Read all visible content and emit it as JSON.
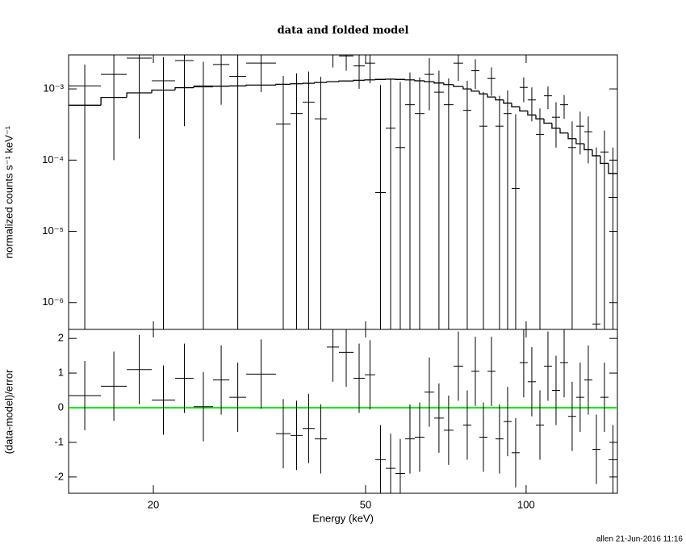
{
  "chart_data": {
    "type": "spectrum",
    "title": "data and folded model",
    "xlabel": "Energy (keV)",
    "footer": "allen 21-Jun-2016 11:16",
    "xscale": "log",
    "xlim": [
      13.87,
      148.3
    ],
    "xticks": [
      20,
      50,
      100
    ],
    "bins": [
      13.87,
      15.95,
      17.83,
      19.86,
      21.97,
      23.8,
      25.88,
      27.76,
      29.86,
      33.96,
      36.16,
      38.1,
      40.14,
      42.3,
      44.57,
      47.46,
      49.82,
      52.12,
      54.56,
      56.88,
      59.3,
      61.84,
      64.48,
      67.22,
      70.08,
      73.08,
      76.2,
      78.92,
      81.72,
      84.62,
      87.6,
      90.72,
      93.94,
      97.26,
      100.7,
      104.3,
      108.0,
      111.8,
      115.8,
      119.9,
      124.1,
      128.5,
      133.1,
      137.8,
      142.7,
      148.3
    ],
    "panels": [
      {
        "type": "spectrum-counts",
        "ylabel": "normalized counts s⁻¹ keV⁻¹",
        "yscale": "log",
        "ylim": [
          4.2e-07,
          0.003
        ],
        "yticks": [
          {
            "value": 1e-06,
            "label": "10⁻⁶"
          },
          {
            "value": 1e-05,
            "label": "10⁻⁵"
          },
          {
            "value": 0.0001,
            "label": "10⁻⁴"
          },
          {
            "value": 0.001,
            "label": "10⁻³"
          }
        ],
        "color": "#000000",
        "values": [
          0.0011,
          0.0016,
          0.0027,
          0.0013,
          0.0025,
          0.0011,
          0.0022,
          0.0015,
          0.0023,
          0.00032,
          0.00045,
          0.00065,
          0.00038,
          0.0032,
          0.0029,
          0.0021,
          0.0023,
          3.5e-05,
          0.00028,
          0.00015,
          0.0006,
          0.00045,
          0.0016,
          0.0009,
          0.0006,
          0.0023,
          0.0005,
          0.0018,
          0.0003,
          0.0014,
          0.0003,
          0.00045,
          4e-05,
          0.00105,
          0.0007,
          0.00023,
          0.0008,
          0.0004,
          0.0006,
          0.00015,
          0.0003,
          0.00025,
          5e-07,
          0.00013,
          3e-05
        ],
        "errors": [
          0.0011,
          0.0015,
          0.0025,
          0.0015,
          0.0022,
          0.0013,
          0.0016,
          0.0015,
          0.0014,
          0.0012,
          0.0012,
          0.0011,
          0.0011,
          0.0012,
          0.0011,
          0.0011,
          0.0011,
          0.0011,
          0.0011,
          0.0011,
          0.0011,
          0.001,
          0.0011,
          0.0009,
          0.0008,
          0.001,
          0.0008,
          0.0008,
          0.0006,
          0.0006,
          0.0005,
          0.0005,
          0.0004,
          0.0004,
          0.00035,
          0.0003,
          0.00028,
          0.00025,
          0.00022,
          0.0002,
          0.00018,
          0.00016,
          0.00015,
          0.00013,
          0.00012
        ],
        "model": [
          0.00059,
          0.00076,
          0.00088,
          0.00096,
          0.00104,
          0.00107,
          0.00109,
          0.0011,
          0.00113,
          0.00116,
          0.00118,
          0.0012,
          0.00123,
          0.00126,
          0.00129,
          0.00132,
          0.00134,
          0.00136,
          0.00137,
          0.00136,
          0.00134,
          0.0013,
          0.00126,
          0.00121,
          0.00115,
          0.00108,
          0.001,
          0.00093,
          0.00085,
          0.00077,
          0.0007,
          0.00063,
          0.00056,
          0.00049,
          0.00043,
          0.00038,
          0.00033,
          0.00028,
          0.00024,
          0.0002,
          0.00017,
          0.00014,
          0.000115,
          9e-05,
          6.5e-05
        ],
        "model_color": "#000000"
      },
      {
        "type": "residual",
        "ylabel": "(data-model)/error",
        "ylim": [
          -2.47,
          2.26
        ],
        "yticks": [
          -2,
          -1,
          0,
          1,
          2
        ],
        "color": "#000000",
        "values": [
          0.35,
          0.62,
          1.1,
          0.22,
          0.85,
          0.03,
          0.8,
          0.3,
          0.97,
          -0.75,
          -0.8,
          -0.6,
          -0.9,
          1.75,
          1.6,
          0.85,
          0.95,
          -1.5,
          -1.75,
          -1.9,
          -0.9,
          -0.85,
          0.45,
          -0.3,
          -0.65,
          1.2,
          -0.5,
          1.05,
          -0.85,
          1.05,
          -0.9,
          -0.4,
          -1.3,
          1.3,
          0.75,
          -0.5,
          1.2,
          0.5,
          1.3,
          -0.25,
          0.3,
          0.8,
          -1.2,
          0.3,
          -1.5
        ],
        "errors": [
          1,
          1,
          1,
          1,
          1,
          1,
          1,
          1,
          1,
          1,
          1,
          1,
          1,
          1,
          1,
          1,
          1,
          1,
          1,
          1,
          1,
          1,
          1,
          1,
          1,
          1,
          1,
          1,
          1,
          1,
          1,
          1,
          1,
          1,
          1,
          1,
          1,
          1,
          1,
          1,
          1,
          1,
          1,
          1,
          1
        ],
        "reference_line": 0,
        "reference_color": "#00ee00"
      }
    ]
  }
}
